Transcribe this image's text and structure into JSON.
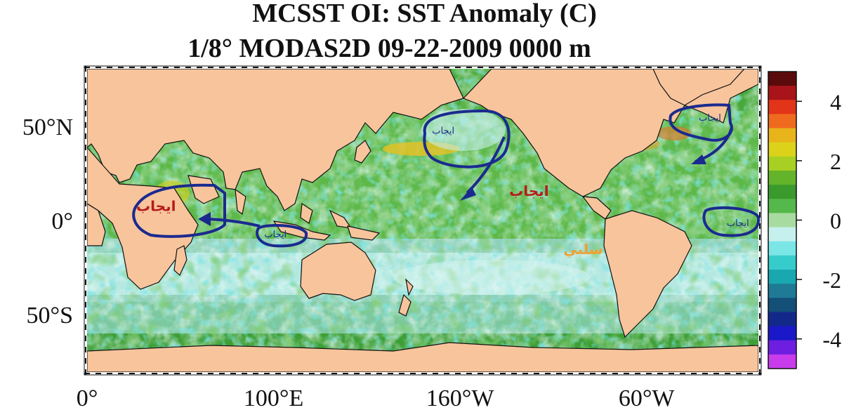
{
  "title": {
    "line1": "MCSST OI:  SST Anomaly (C)",
    "line2": "1/8° MODAS2D 09-22-2009 0000 m"
  },
  "axes": {
    "lat_ticks": [
      {
        "label": "50°N",
        "lat": 50
      },
      {
        "label": "0°",
        "lat": 0
      },
      {
        "label": "50°S",
        "lat": -50
      }
    ],
    "lon_ticks": [
      {
        "label": "0°",
        "lon": 0
      },
      {
        "label": "100°E",
        "lon": 100
      },
      {
        "label": "160°W",
        "lon": 200
      },
      {
        "label": "60°W",
        "lon": 300
      }
    ]
  },
  "colorbar": {
    "range": [
      -5,
      5
    ],
    "tick_labels": [
      "4",
      "2",
      "0",
      "-2",
      "-4"
    ],
    "tick_values": [
      4,
      2,
      0,
      -2,
      -4
    ],
    "colors": [
      "#5a0a0a",
      "#a8141a",
      "#e23418",
      "#ef6a1e",
      "#e8b41c",
      "#dcd21a",
      "#a8cf24",
      "#63b42a",
      "#3a9a2c",
      "#55b84a",
      "#a8dba0",
      "#c6f0ee",
      "#7ae6e6",
      "#36cccc",
      "#1aa8b0",
      "#1f7a96",
      "#144f78",
      "#12288a",
      "#1a18c8",
      "#6e1ee0",
      "#c83cec"
    ]
  },
  "annotations": [
    {
      "text": "ايجاب",
      "color": "#1b2a8f",
      "lon": 191,
      "lat": 46
    },
    {
      "text": "ايجاب",
      "color": "#1b2a8f",
      "lon": 334,
      "lat": 53
    },
    {
      "text": "ايجاب",
      "color": "#b51c1c",
      "lon": 237,
      "lat": 13
    },
    {
      "text": "ايجاب",
      "color": "#b51c1c",
      "lon": 37,
      "lat": 5
    },
    {
      "text": "ايجاب",
      "color": "#1b2a8f",
      "lon": 101,
      "lat": -9
    },
    {
      "text": "ايجاب",
      "color": "#1b2a8f",
      "lon": 349,
      "lat": -3
    },
    {
      "text": "سلبي",
      "color": "#f0a030",
      "lon": 266,
      "lat": -18
    }
  ]
}
